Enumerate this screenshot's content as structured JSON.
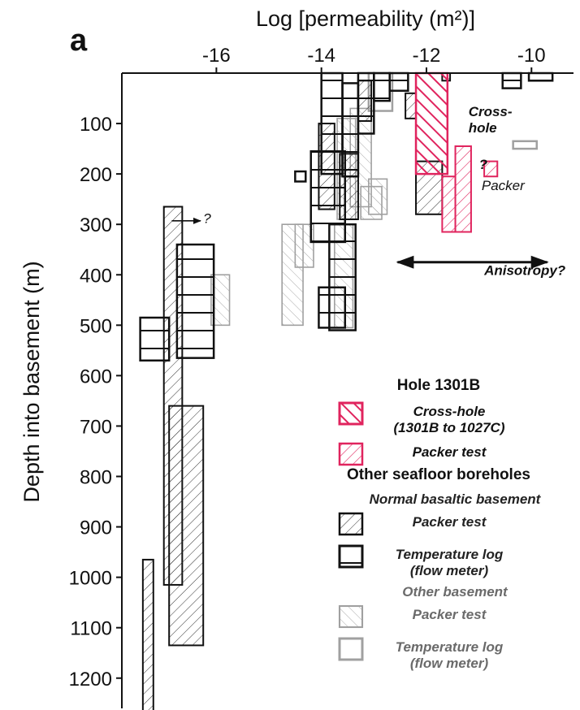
{
  "chart_data": {
    "type": "range-boxes",
    "panel_label": "a",
    "xlabel": "Log [permeability (m²)]",
    "ylabel": "Depth into basement (m)",
    "x_axis_position": "top",
    "xlim": [
      -17.8,
      -9.2
    ],
    "ylim": [
      1260,
      0
    ],
    "x_ticks": [
      -16,
      -14,
      -12,
      -10
    ],
    "x_tick_labels": [
      "-16",
      "-14",
      "-12",
      "-10"
    ],
    "y_ticks": [
      100,
      200,
      300,
      400,
      500,
      600,
      700,
      800,
      900,
      1000,
      1100,
      1200
    ],
    "y_tick_labels": [
      "100",
      "200",
      "300",
      "400",
      "500",
      "600",
      "700",
      "800",
      "900",
      "1000",
      "1100",
      "1200"
    ],
    "colors": {
      "hole1301b": "#e0245e",
      "normal": "#111111",
      "other": "#a0a0a0"
    },
    "series": [
      {
        "key": "crosshole",
        "name": "Cross-hole (1301B to 1027C)",
        "pattern": "dense-hatch",
        "color_key": "hole1301b",
        "boxes": [
          {
            "xmin": -12.2,
            "xmax": -11.6,
            "ymin": 0,
            "ymax": 200
          }
        ]
      },
      {
        "key": "packer1301b",
        "name": "Packer test",
        "pattern": "hatch",
        "color_key": "hole1301b",
        "boxes": [
          {
            "xmin": -11.7,
            "xmax": -11.45,
            "ymin": 205,
            "ymax": 315
          },
          {
            "xmin": -11.45,
            "xmax": -11.15,
            "ymin": 145,
            "ymax": 315
          },
          {
            "xmin": -10.9,
            "xmax": -10.65,
            "ymin": 175,
            "ymax": 205
          }
        ]
      },
      {
        "key": "normal_packer",
        "name": "Packer test",
        "pattern": "hatch",
        "color_key": "normal",
        "boxes": [
          {
            "xmin": -17.0,
            "xmax": -16.65,
            "ymin": 265,
            "ymax": 1015
          },
          {
            "xmin": -16.9,
            "xmax": -16.25,
            "ymin": 660,
            "ymax": 1135
          },
          {
            "xmin": -17.4,
            "xmax": -17.2,
            "ymin": 965,
            "ymax": 1270
          },
          {
            "xmin": -14.05,
            "xmax": -13.75,
            "ymin": 100,
            "ymax": 270
          },
          {
            "xmin": -13.65,
            "xmax": -13.3,
            "ymin": 160,
            "ymax": 290
          },
          {
            "xmin": -13.3,
            "xmax": -13.05,
            "ymin": 15,
            "ymax": 95
          },
          {
            "xmin": -12.4,
            "xmax": -12.2,
            "ymin": 40,
            "ymax": 90
          },
          {
            "xmin": -12.2,
            "xmax": -11.7,
            "ymin": 175,
            "ymax": 280
          },
          {
            "xmin": -11.7,
            "xmax": -11.55,
            "ymin": 0,
            "ymax": 15
          }
        ]
      },
      {
        "key": "normal_templog",
        "name": "Temperature log (flow meter)",
        "pattern": "horizontal-lines",
        "color_key": "normal",
        "boxes": [
          {
            "xmin": -17.45,
            "xmax": -16.9,
            "ymin": 485,
            "ymax": 570
          },
          {
            "xmin": -16.75,
            "xmax": -16.05,
            "ymin": 340,
            "ymax": 565
          },
          {
            "xmin": -14.2,
            "xmax": -13.55,
            "ymin": 155,
            "ymax": 335
          },
          {
            "xmin": -14.5,
            "xmax": -14.3,
            "ymin": 195,
            "ymax": 215
          },
          {
            "xmin": -14.0,
            "xmax": -13.6,
            "ymin": 0,
            "ymax": 200
          },
          {
            "xmin": -13.6,
            "xmax": -13.3,
            "ymin": 20,
            "ymax": 205
          },
          {
            "xmin": -13.3,
            "xmax": -13.0,
            "ymin": 0,
            "ymax": 120
          },
          {
            "xmin": -13.0,
            "xmax": -12.7,
            "ymin": 0,
            "ymax": 55
          },
          {
            "xmin": -12.7,
            "xmax": -12.35,
            "ymin": 0,
            "ymax": 35
          },
          {
            "xmin": -14.05,
            "xmax": -13.55,
            "ymin": 425,
            "ymax": 505
          },
          {
            "xmin": -13.85,
            "xmax": -13.35,
            "ymin": 300,
            "ymax": 510
          },
          {
            "xmin": -10.55,
            "xmax": -10.2,
            "ymin": 0,
            "ymax": 30
          },
          {
            "xmin": -10.05,
            "xmax": -9.6,
            "ymin": 0,
            "ymax": 15
          }
        ]
      },
      {
        "key": "other_packer",
        "name": "Packer test",
        "pattern": "hatch",
        "color_key": "other",
        "boxes": [
          {
            "xmin": -16.1,
            "xmax": -15.75,
            "ymin": 400,
            "ymax": 500
          },
          {
            "xmin": -14.75,
            "xmax": -14.35,
            "ymin": 300,
            "ymax": 500
          },
          {
            "xmin": -14.5,
            "xmax": -14.15,
            "ymin": 300,
            "ymax": 385
          },
          {
            "xmin": -13.75,
            "xmax": -13.4,
            "ymin": 300,
            "ymax": 505
          },
          {
            "xmin": -13.7,
            "xmax": -13.35,
            "ymin": 90,
            "ymax": 290
          },
          {
            "xmin": -13.45,
            "xmax": -13.05,
            "ymin": 70,
            "ymax": 265
          },
          {
            "xmin": -13.1,
            "xmax": -12.75,
            "ymin": 210,
            "ymax": 280
          },
          {
            "xmin": -13.25,
            "xmax": -12.85,
            "ymin": 225,
            "ymax": 290
          }
        ]
      },
      {
        "key": "other_templog",
        "name": "Temperature log (flow meter)",
        "pattern": "outline",
        "color_key": "other",
        "boxes": [
          {
            "xmin": -13.1,
            "xmax": -12.65,
            "ymin": 0,
            "ymax": 75
          },
          {
            "xmin": -10.35,
            "xmax": -9.9,
            "ymin": 135,
            "ymax": 150
          }
        ]
      }
    ],
    "annotations": [
      {
        "text": "Cross-\nhole",
        "x": -11.2,
        "y": 85,
        "color_key": "normal",
        "style": "bold-italic"
      },
      {
        "text": "Packer",
        "x": -10.95,
        "y": 232,
        "color_key": "normal",
        "style": "italic"
      },
      {
        "text": "?",
        "x": -11.0,
        "y": 190,
        "color_key": "normal",
        "style": "bold"
      },
      {
        "text": "?",
        "x": -16.25,
        "y": 297,
        "color_key": "normal",
        "style": "small"
      },
      {
        "text": "Anisotropy?",
        "x": -10.9,
        "y": 400,
        "color_key": "normal",
        "style": "bold-italic-small"
      }
    ],
    "arrows": [
      {
        "from": [
          -16.85,
          293
        ],
        "to": [
          -16.3,
          293
        ],
        "kind": "single"
      },
      {
        "from": [
          -12.55,
          375
        ],
        "to": [
          -9.7,
          375
        ],
        "kind": "double",
        "label_index": 4
      }
    ],
    "legend": {
      "placement": "bottom-right",
      "groups": [
        {
          "title": "Hole 1301B",
          "items": [
            {
              "series_key": "crosshole",
              "label": "Cross-hole",
              "label2": "(1301B to 1027C)"
            },
            {
              "series_key": "packer1301b",
              "label": "Packer test"
            }
          ]
        },
        {
          "title": "Other seafloor boreholes",
          "subgroups": [
            {
              "title": "Normal basaltic basement",
              "items": [
                {
                  "series_key": "normal_packer",
                  "label": "Packer test"
                },
                {
                  "series_key": "normal_templog",
                  "label": "Temperature log",
                  "label2": "(flow meter)"
                }
              ]
            },
            {
              "title": "Other basement",
              "items": [
                {
                  "series_key": "other_packer",
                  "label": "Packer test"
                },
                {
                  "series_key": "other_templog",
                  "label": "Temperature log",
                  "label2": "(flow meter)"
                }
              ]
            }
          ]
        }
      ]
    }
  }
}
